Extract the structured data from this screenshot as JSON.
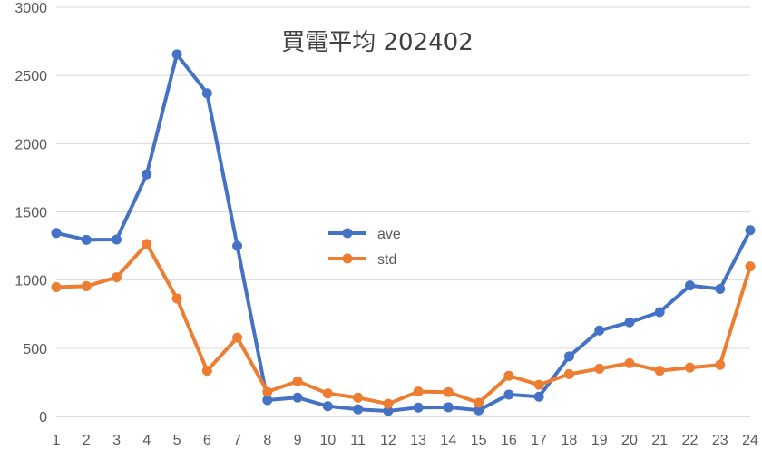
{
  "chart_data": {
    "type": "line",
    "title": "買電平均 202402",
    "xlabel": "",
    "ylabel": "",
    "x": [
      1,
      2,
      3,
      4,
      5,
      6,
      7,
      8,
      9,
      10,
      11,
      12,
      13,
      14,
      15,
      16,
      17,
      18,
      19,
      20,
      21,
      22,
      23,
      24
    ],
    "ylim": [
      0,
      3000
    ],
    "yticks": [
      0,
      500,
      1000,
      1500,
      2000,
      2500,
      3000
    ],
    "grid": true,
    "legend_position": "center",
    "series": [
      {
        "name": "ave",
        "color": "#4472C4",
        "values": [
          1345,
          1295,
          1297,
          1775,
          2655,
          2370,
          1250,
          120,
          138,
          75,
          52,
          40,
          65,
          67,
          45,
          160,
          145,
          440,
          630,
          690,
          765,
          960,
          935,
          1365
        ]
      },
      {
        "name": "std",
        "color": "#ED7D31",
        "values": [
          948,
          955,
          1020,
          1265,
          865,
          335,
          578,
          180,
          258,
          168,
          138,
          92,
          182,
          178,
          100,
          298,
          232,
          310,
          350,
          390,
          335,
          358,
          378,
          1100
        ]
      }
    ]
  }
}
